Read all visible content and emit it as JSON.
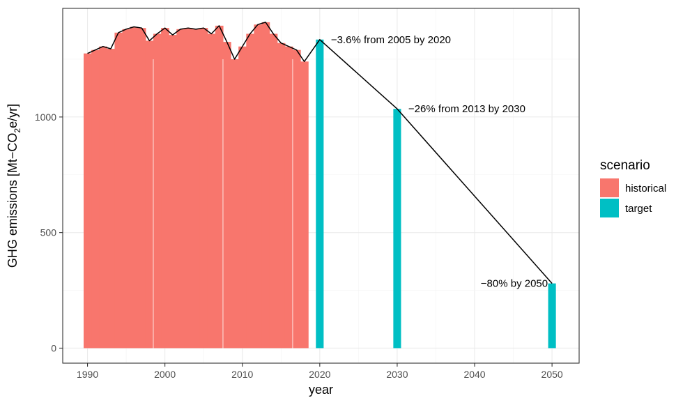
{
  "chart_data": {
    "type": "bar",
    "xlabel": "year",
    "ylabel_parts": [
      "GHG emissions [Mt−CO",
      "2",
      "e/yr]"
    ],
    "xlim": [
      1986.8,
      2053.5
    ],
    "ylim": [
      -65,
      1470
    ],
    "x_ticks": [
      1990,
      2000,
      2010,
      2020,
      2030,
      2040,
      2050
    ],
    "y_ticks": [
      0,
      500,
      1000
    ],
    "grid": true,
    "legend": {
      "title": "scenario",
      "position": "right",
      "entries": [
        {
          "label": "historical",
          "color": "#F8766D"
        },
        {
          "label": "target",
          "color": "#00BFC4"
        }
      ]
    },
    "series": [
      {
        "name": "historical",
        "color": "#F8766D",
        "x": [
          1990,
          1991,
          1992,
          1993,
          1994,
          1995,
          1996,
          1997,
          1998,
          1999,
          2000,
          2001,
          2002,
          2003,
          2004,
          2005,
          2006,
          2007,
          2008,
          2009,
          2010,
          2011,
          2012,
          2013,
          2014,
          2015,
          2016,
          2017,
          2018
        ],
        "values": [
          1275,
          1290,
          1305,
          1295,
          1365,
          1380,
          1390,
          1385,
          1330,
          1360,
          1385,
          1355,
          1380,
          1385,
          1380,
          1385,
          1360,
          1395,
          1325,
          1250,
          1305,
          1360,
          1400,
          1410,
          1360,
          1320,
          1305,
          1290,
          1240
        ]
      },
      {
        "name": "target",
        "color": "#00BFC4",
        "x": [
          2020,
          2030,
          2050
        ],
        "values": [
          1335,
          1035,
          280
        ]
      }
    ],
    "annotations": [
      {
        "x": 2020,
        "y": 1335,
        "text": "−3.6% from 2005 by 2020",
        "anchor": "start"
      },
      {
        "x": 2030,
        "y": 1035,
        "text": "−26% from 2013 by 2030",
        "anchor": "start"
      },
      {
        "x": 2050,
        "y": 280,
        "text": "−80% by 2050",
        "anchor": "end"
      }
    ]
  }
}
